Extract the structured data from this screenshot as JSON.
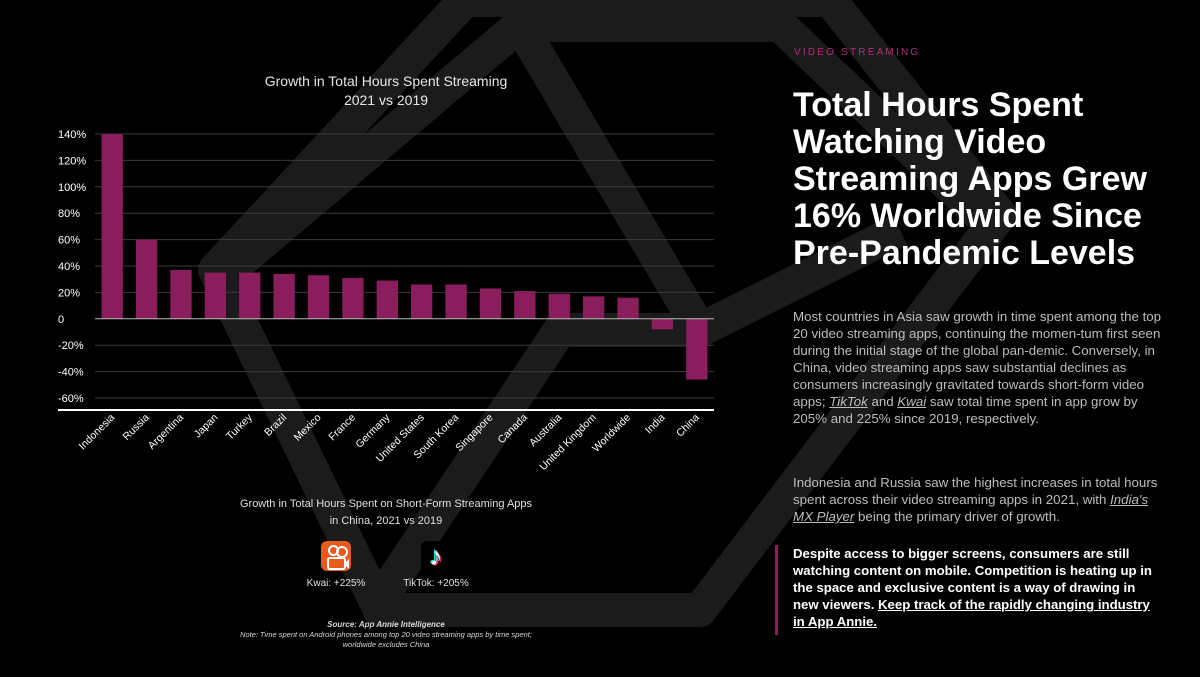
{
  "colors": {
    "bar": "#8a1d5c",
    "kicker": "#b0307a",
    "background": "#000000"
  },
  "kicker": "VIDEO STREAMING",
  "headline": "Total Hours Spent Watching Video Streaming Apps Grew 16% Worldwide Since Pre-Pandemic Levels",
  "para1": {
    "text_a": "Most countries in Asia saw growth in time spent among the top 20 video streaming apps, continuing the momen-tum first seen during the initial stage of the global pan-demic. Conversely, in China, video streaming apps saw substantial declines as consumers increasingly gravitated towards short-form video apps; ",
    "link_tiktok": "TikTok",
    "text_b": " and ",
    "link_kwai": "Kwai",
    "text_c": " saw total time spent in app grow by 205% and 225% since 2019, respectively."
  },
  "para2": {
    "text_a": "Indonesia and Russia saw the highest increases in total hours spent across their video streaming apps in 2021, with ",
    "link_mx": "India's MX Player",
    "text_b": " being the primary driver of growth."
  },
  "callout": {
    "text": "Despite access to bigger screens, consumers are still watching content on mobile. Competition is heating up in the space and exclusive content is a way of drawing in new viewers. ",
    "link": "Keep track of the rapidly changing industry in App Annie."
  },
  "subchart": {
    "title": "Growth in Total Hours Spent on Short-Form Streaming Apps in China, 2021 vs 2019",
    "apps": [
      {
        "label": "Kwai: +225%",
        "icon": "kwai-icon"
      },
      {
        "label": "TikTok: +205%",
        "icon": "tiktok-icon"
      }
    ]
  },
  "source": {
    "label": "Source: App Annie Intelligence",
    "note": "Note: Time spent on Android phones among top 20 video streaming apps by time spent; worldwide excludes China"
  },
  "chart_data": {
    "type": "bar",
    "title": "Growth in Total Hours Spent Streaming",
    "subtitle": "2021 vs 2019",
    "xlabel": "",
    "ylabel": "",
    "ylim": [
      -60,
      140
    ],
    "yticks": [
      140,
      120,
      100,
      80,
      60,
      40,
      20,
      0,
      -20,
      -40,
      -60
    ],
    "ytick_labels": [
      "140%",
      "120%",
      "100%",
      "80%",
      "60%",
      "40%",
      "20%",
      "0",
      "-20%",
      "-40%",
      "-60%"
    ],
    "grid": true,
    "categories": [
      "Indonesia",
      "Russia",
      "Argentina",
      "Japan",
      "Turkey",
      "Brazil",
      "Mexico",
      "France",
      "Germany",
      "United States",
      "South Korea",
      "Singapore",
      "Canada",
      "Australia",
      "United Kingdom",
      "Worldwide",
      "India",
      "China"
    ],
    "values": [
      140,
      60,
      37,
      35,
      35,
      34,
      33,
      31,
      29,
      26,
      26,
      23,
      21,
      19,
      17,
      16,
      -8,
      -46
    ]
  }
}
